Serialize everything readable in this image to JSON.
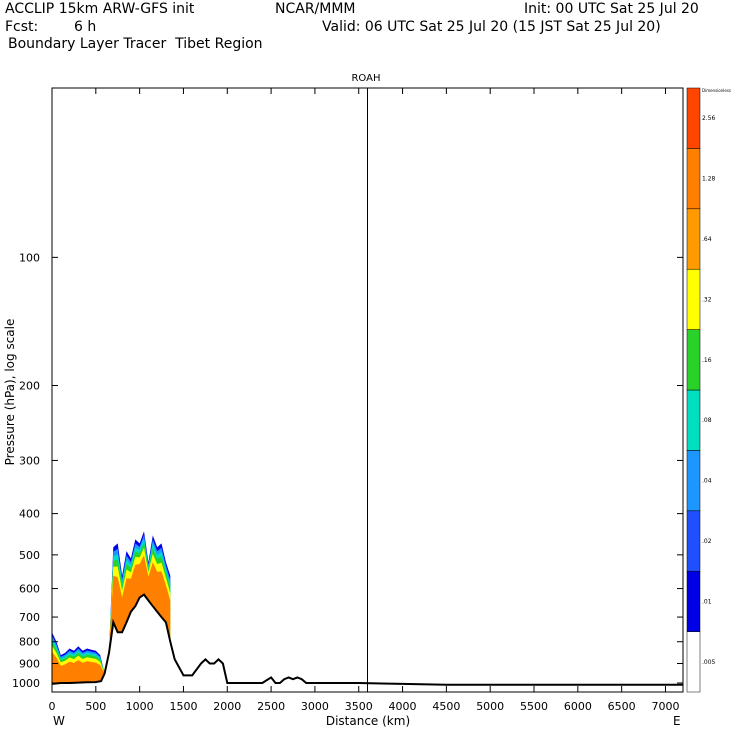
{
  "header": {
    "model": "ACCLIP 15km ARW-GFS init",
    "org": "NCAR/MMM",
    "init": "Init: 00 UTC Sat 25 Jul 20",
    "fcst_label": "Fcst:",
    "fcst_value": "6 h",
    "valid": "Valid: 06 UTC Sat 25 Jul 20 (15 JST Sat 25 Jul 20)",
    "field": "Boundary Layer Tracer  Tibet Region"
  },
  "chart_data": {
    "type": "area",
    "title": "ROAH",
    "xlabel": "Distance (km)",
    "ylabel": "Pressure (hPa), log scale",
    "x_range": [
      0,
      7200
    ],
    "y_range_hpa": [
      1050,
      40
    ],
    "y_scale": "log",
    "x_ticks": [
      0,
      500,
      1000,
      1500,
      2000,
      2500,
      3000,
      3500,
      4000,
      4500,
      5000,
      5500,
      6000,
      6500,
      7000
    ],
    "y_ticks": [
      100,
      200,
      300,
      400,
      500,
      600,
      700,
      800,
      900,
      1000
    ],
    "x_end_labels": {
      "left": "W",
      "right": "E"
    },
    "marker_line_km": 3600,
    "grid": false,
    "colorbar": {
      "top_label": "Dimensionless",
      "levels": [
        ".005",
        ".01",
        ".02",
        ".04",
        ".08",
        ".16",
        ".32",
        ".64",
        "1.28",
        "2.56"
      ],
      "colors": [
        "#ffffff",
        "#0000e6",
        "#1e50ff",
        "#1e96ff",
        "#00e0c0",
        "#28d228",
        "#ffff00",
        "#ff9a00",
        "#ff8000",
        "#ff4500"
      ]
    },
    "terrain_surface_hpa": {
      "x": [
        0,
        100,
        200,
        300,
        400,
        500,
        560,
        600,
        650,
        700,
        750,
        800,
        850,
        900,
        950,
        1000,
        1050,
        1100,
        1150,
        1200,
        1250,
        1300,
        1350,
        1400,
        1500,
        1600,
        1700,
        1750,
        1800,
        1850,
        1900,
        1950,
        2000,
        2100,
        2200,
        2300,
        2400,
        2500,
        2550,
        2600,
        2650,
        2700,
        2750,
        2800,
        2850,
        2900,
        3000,
        3500,
        4000,
        4500,
        5000,
        5500,
        6000,
        6500,
        7000,
        7200
      ],
      "p": [
        1005,
        1000,
        1000,
        998,
        996,
        995,
        990,
        950,
        850,
        720,
        760,
        760,
        720,
        680,
        660,
        630,
        620,
        640,
        660,
        680,
        700,
        720,
        800,
        880,
        960,
        960,
        900,
        880,
        900,
        900,
        880,
        900,
        1000,
        1000,
        1000,
        1000,
        1000,
        970,
        1000,
        1000,
        980,
        970,
        980,
        970,
        980,
        1000,
        1000,
        1000,
        1005,
        1010,
        1010,
        1010,
        1010,
        1010,
        1010,
        1010
      ]
    },
    "tracer_top_hpa": {
      "x": [
        0,
        50,
        100,
        150,
        200,
        250,
        300,
        350,
        400,
        450,
        500,
        550,
        600,
        650,
        700,
        750,
        800,
        850,
        900,
        950,
        1000,
        1050,
        1100,
        1150,
        1200,
        1250,
        1300,
        1350
      ],
      "p": [
        760,
        800,
        860,
        850,
        830,
        840,
        820,
        840,
        830,
        835,
        840,
        860,
        950,
        850,
        480,
        470,
        560,
        490,
        510,
        460,
        470,
        440,
        520,
        450,
        480,
        470,
        520,
        560
      ]
    }
  }
}
